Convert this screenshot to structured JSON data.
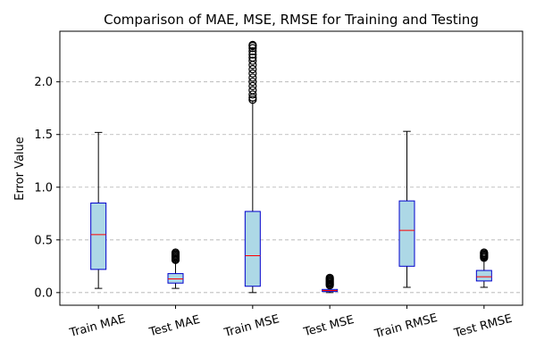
{
  "colors": {
    "box_fill": "#add8e6",
    "box_edge": "#0000cc",
    "median": "#ff0000",
    "whisker": "#000000",
    "outlier": "#000000",
    "grid": "#b0b0b0"
  },
  "chart_data": {
    "type": "box",
    "title": "Comparison of MAE, MSE, RMSE for Training and Testing",
    "xlabel": "",
    "ylabel": "Error Value",
    "ylim": [
      -0.12,
      2.48
    ],
    "yticks": [
      "0.0",
      "0.5",
      "1.0",
      "1.5",
      "2.0"
    ],
    "grid": "y-dashed",
    "categories": [
      "Train MAE",
      "Test MAE",
      "Train MSE",
      "Test MSE",
      "Train RMSE",
      "Test RMSE"
    ],
    "boxes": [
      {
        "whislo": 0.04,
        "q1": 0.22,
        "med": 0.55,
        "q3": 0.85,
        "whishi": 1.52,
        "fliers": []
      },
      {
        "whislo": 0.04,
        "q1": 0.09,
        "med": 0.13,
        "q3": 0.18,
        "whishi": 0.3,
        "fliers": [
          0.31,
          0.32,
          0.33,
          0.34,
          0.35,
          0.36,
          0.37,
          0.38
        ]
      },
      {
        "whislo": 0.0,
        "q1": 0.06,
        "med": 0.35,
        "q3": 0.77,
        "whishi": 1.82,
        "fliers": [
          1.83,
          1.85,
          1.88,
          1.92,
          1.96,
          2.0,
          2.04,
          2.08,
          2.12,
          2.16,
          2.2,
          2.23,
          2.26,
          2.29,
          2.32,
          2.34,
          2.35
        ]
      },
      {
        "whislo": 0.0,
        "q1": 0.01,
        "med": 0.02,
        "q3": 0.03,
        "whishi": 0.06,
        "fliers": [
          0.07,
          0.08,
          0.09,
          0.1,
          0.11,
          0.12,
          0.13,
          0.14
        ]
      },
      {
        "whislo": 0.05,
        "q1": 0.25,
        "med": 0.59,
        "q3": 0.87,
        "whishi": 1.53,
        "fliers": []
      },
      {
        "whislo": 0.05,
        "q1": 0.11,
        "med": 0.15,
        "q3": 0.21,
        "whishi": 0.32,
        "fliers": [
          0.33,
          0.34,
          0.35,
          0.36,
          0.37,
          0.38
        ]
      }
    ]
  }
}
